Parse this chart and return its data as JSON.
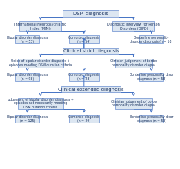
{
  "bg_color": "#ffffff",
  "box_face": "#dce6f1",
  "box_edge": "#4472c4",
  "arrow_color": "#4472c4",
  "title_box": "DSM diagnosis",
  "row1_left_title": "International Neuropsychiatric\nIndex (MINI)",
  "row1_right_title": "Diagnostic Interview for Person\nDisorders (DIPD)",
  "row2_left": "Bipolar disorder diagnosis\n(n = 53)",
  "row2_mid": "Comorbid diagnosis\n(n = 54)",
  "row2_right": "Borderline personality\ndisorder diagnosis (n = 53)",
  "clinical_strict": "Clinical strict diagnosis",
  "row3_left_title": "Union of bipolar disorder diagnosis +\nepisodes meeting DSM duration criteria",
  "row3_right_title": "Clinician judgement of border\npersonality disorder diagno",
  "row4_left": "Bipolar disorder diagnosis\n(n = 98)",
  "row4_mid": "Comorbid diagnosis\n(n = 23)",
  "row4_right": "Borderline personality disor\ndiagnosis (n = 58)",
  "clinical_extended": "Clinical extended diagnosis",
  "row5_left_title": "Judgement of bipolar disorder diagnosis +\nepisodes not necessarily meeting\nDSM duration criteria",
  "row5_right_title": "Clinician judgement of borde\npersonality disorder diagno",
  "row6_left": "Bipolar disorder diagnosis\n(n = 125)",
  "row6_mid": "Comorbid diagnosis\n(n = 29)",
  "row6_right": "Borderline personality disor\ndiagnosis (n = 53)",
  "text_color": "#1f3864",
  "font_size": 3.8,
  "title_font_size": 5.0
}
